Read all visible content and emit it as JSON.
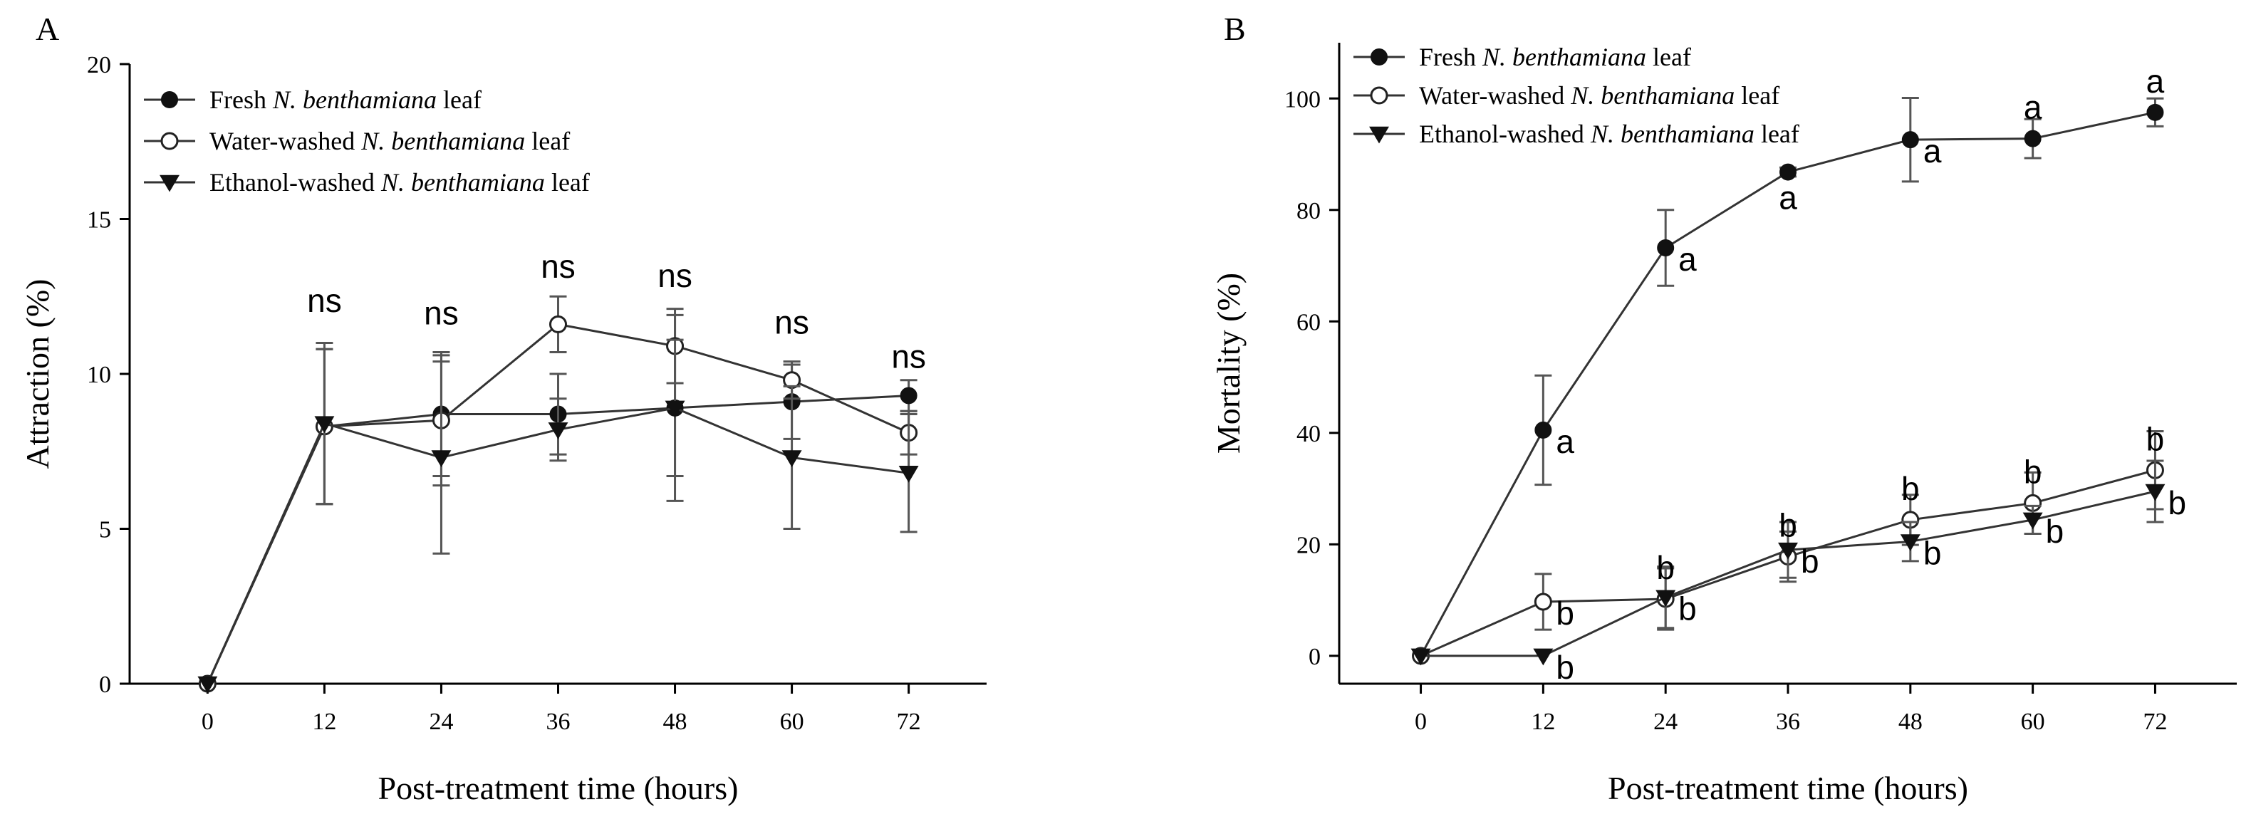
{
  "chart_data": [
    {
      "panel_label": "A",
      "type": "line",
      "xlabel": "Post-treatment time (hours)",
      "ylabel": "Attraction (%)",
      "x": [
        0,
        12,
        24,
        36,
        48,
        60,
        72
      ],
      "xticks": [
        "0",
        "12",
        "24",
        "36",
        "48",
        "60",
        "72"
      ],
      "ylim": [
        0,
        20
      ],
      "yticks": [
        "0",
        "5",
        "10",
        "15",
        "20"
      ],
      "series": [
        {
          "name": "Fresh N. benthamiana leaf",
          "legend_prefix": "Fresh ",
          "legend_italic": "N. benthamiana",
          "legend_suffix": " leaf",
          "marker": "filled-circle",
          "values": [
            0,
            8.3,
            8.7,
            8.7,
            8.9,
            9.1,
            9.3
          ],
          "errors": [
            0,
            2.5,
            2.0,
            1.3,
            3.0,
            1.2,
            0.5
          ]
        },
        {
          "name": "Water-washed N. benthamiana leaf",
          "legend_prefix": "Water-washed ",
          "legend_italic": "N. benthamiana",
          "legend_suffix": " leaf",
          "marker": "open-circle",
          "values": [
            0,
            8.3,
            8.5,
            11.6,
            10.9,
            9.8,
            8.1
          ],
          "errors": [
            0,
            2.5,
            2.1,
            0.9,
            1.2,
            0.6,
            0.7
          ]
        },
        {
          "name": "Ethanol-washed N. benthamiana leaf",
          "legend_prefix": "Ethanol-washed ",
          "legend_italic": "N. benthamiana",
          "legend_suffix": " leaf",
          "marker": "filled-triangle-down",
          "values": [
            0,
            8.4,
            7.3,
            8.2,
            8.9,
            7.3,
            6.8
          ],
          "errors": [
            0,
            2.6,
            3.1,
            1.0,
            2.2,
            2.3,
            1.9
          ]
        }
      ],
      "annotations": [
        {
          "x": 12,
          "text": "ns",
          "y": 12.0
        },
        {
          "x": 24,
          "text": "ns",
          "y": 11.6
        },
        {
          "x": 36,
          "text": "ns",
          "y": 13.1
        },
        {
          "x": 48,
          "text": "ns",
          "y": 12.8
        },
        {
          "x": 60,
          "text": "ns",
          "y": 11.3
        },
        {
          "x": 72,
          "text": "ns",
          "y": 10.2
        }
      ]
    },
    {
      "panel_label": "B",
      "type": "line",
      "xlabel": "Post-treatment time (hours)",
      "ylabel": "Mortality (%)",
      "x": [
        0,
        12,
        24,
        36,
        48,
        60,
        72
      ],
      "xticks": [
        "0",
        "12",
        "24",
        "36",
        "48",
        "60",
        "72"
      ],
      "ylim": [
        -5,
        110
      ],
      "yticks": [
        "0",
        "20",
        "40",
        "60",
        "80",
        "100"
      ],
      "series": [
        {
          "name": "Fresh N. benthamiana leaf",
          "legend_prefix": "Fresh ",
          "legend_italic": "N. benthamiana",
          "legend_suffix": " leaf",
          "marker": "filled-circle",
          "values": [
            0,
            40.5,
            73.2,
            86.8,
            92.6,
            92.8,
            97.5
          ],
          "errors": [
            0,
            9.8,
            6.8,
            0.8,
            7.5,
            3.5,
            2.5
          ]
        },
        {
          "name": "Water-washed N. benthamiana leaf",
          "legend_prefix": "Water-washed ",
          "legend_italic": "N. benthamiana",
          "legend_suffix": " leaf",
          "marker": "open-circle",
          "values": [
            0,
            9.7,
            10.2,
            17.8,
            24.4,
            27.4,
            33.3
          ],
          "errors": [
            0,
            5.0,
            5.5,
            4.5,
            4.5,
            5.5,
            7.0
          ]
        },
        {
          "name": "Ethanol-washed N. benthamiana leaf",
          "legend_prefix": "Ethanol-washed ",
          "legend_italic": "N. benthamiana",
          "legend_suffix": " leaf",
          "marker": "filled-triangle-down",
          "values": [
            0,
            0,
            10.5,
            19.0,
            20.5,
            24.4,
            29.5
          ],
          "errors": [
            0,
            0,
            5.5,
            5.0,
            3.5,
            2.5,
            5.5
          ]
        }
      ],
      "annotations": [
        {
          "x": 12,
          "y": 40.5,
          "text": "a",
          "pos": "right"
        },
        {
          "x": 24,
          "y": 73.2,
          "text": "a",
          "pos": "right"
        },
        {
          "x": 36,
          "y": 86.8,
          "text": "a",
          "pos": "below"
        },
        {
          "x": 48,
          "y": 92.6,
          "text": "a",
          "pos": "right"
        },
        {
          "x": 60,
          "y": 92.8,
          "text": "a",
          "pos": "above"
        },
        {
          "x": 72,
          "y": 97.5,
          "text": "a",
          "pos": "above"
        },
        {
          "x": 12,
          "y": 9.7,
          "text": "b",
          "pos": "right"
        },
        {
          "x": 24,
          "y": 10.2,
          "text": "b",
          "pos": "above"
        },
        {
          "x": 36,
          "y": 17.8,
          "text": "b",
          "pos": "above"
        },
        {
          "x": 48,
          "y": 24.4,
          "text": "b",
          "pos": "above"
        },
        {
          "x": 60,
          "y": 27.4,
          "text": "b",
          "pos": "above"
        },
        {
          "x": 72,
          "y": 33.3,
          "text": "b",
          "pos": "above"
        },
        {
          "x": 12,
          "y": 0,
          "text": "b",
          "pos": "right"
        },
        {
          "x": 24,
          "y": 10.5,
          "text": "b",
          "pos": "right"
        },
        {
          "x": 36,
          "y": 19.0,
          "text": "b",
          "pos": "right"
        },
        {
          "x": 48,
          "y": 20.5,
          "text": "b",
          "pos": "right"
        },
        {
          "x": 60,
          "y": 24.4,
          "text": "b",
          "pos": "right"
        },
        {
          "x": 72,
          "y": 29.5,
          "text": "b",
          "pos": "right"
        }
      ]
    }
  ]
}
